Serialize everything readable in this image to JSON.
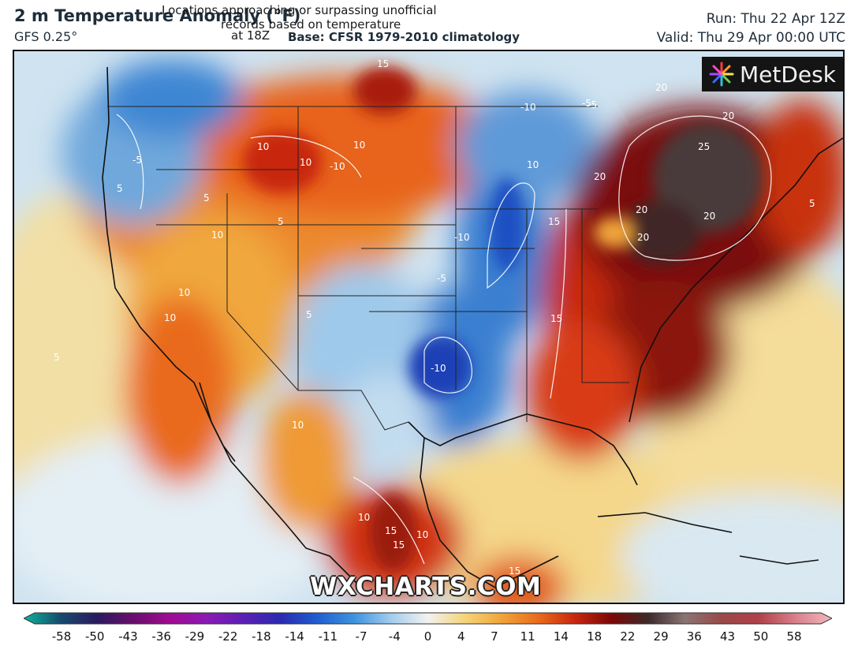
{
  "header": {
    "title": "2 m Temperature Anomaly (°F)",
    "model": "GFS 0.25°",
    "overlay_note_line1": "Locations approaching or surpassing unofficial",
    "overlay_note_line2": "records based on temperature",
    "overlay_note_line3": "at 18Z",
    "base": "Base: CFSR 1979-2010 climatology",
    "run": "Run: Thu 22 Apr 12Z",
    "valid": "Valid: Thu 29 Apr 00:00 UTC"
  },
  "branding": {
    "logo": "MetDesk",
    "watermark": "WXCHARTS.COM"
  },
  "map": {
    "region": "North America / CONUS",
    "contour_labels": [
      "15",
      "-10",
      "-5",
      "20",
      "20",
      "25",
      "10",
      "-5",
      "10",
      "10",
      "5",
      "20",
      "-10",
      "20",
      "20",
      "15",
      "10",
      "5",
      "10",
      "-5",
      "5",
      "10",
      "15",
      "-10",
      "5",
      "10",
      "10",
      "15",
      "10",
      "15",
      "5",
      "-5",
      "5",
      "10",
      "-10",
      "15",
      "20"
    ],
    "colors": {
      "cold_strong": "#1a3fb5",
      "cold": "#4a8fd6",
      "cool": "#a9d0ee",
      "neutral": "#f5f1e6",
      "warm": "#f3c65a",
      "warmer": "#ee8a2a",
      "hot": "#c9280f",
      "very_hot": "#6e0c07",
      "extreme": "#4a3a3a"
    }
  },
  "legend": {
    "ticks": [
      "-58",
      "-50",
      "-43",
      "-36",
      "-29",
      "-22",
      "-18",
      "-14",
      "-11",
      "-7",
      "-4",
      "0",
      "4",
      "7",
      "11",
      "14",
      "18",
      "22",
      "29",
      "36",
      "43",
      "50",
      "58"
    ],
    "stops": [
      "#0fb59a",
      "#164a6e",
      "#2a1a5e",
      "#6a0d6d",
      "#a00b93",
      "#8a1ab4",
      "#5a1fb4",
      "#2a2ab0",
      "#1f5fcf",
      "#3d93df",
      "#a3cdee",
      "#f2f2f0",
      "#f5d57a",
      "#f0a53b",
      "#e96b1c",
      "#c8270f",
      "#7a0806",
      "#3c2a2a",
      "#8a7474",
      "#9a4848",
      "#b0404a",
      "#d87f8a",
      "#f1b8be"
    ]
  }
}
